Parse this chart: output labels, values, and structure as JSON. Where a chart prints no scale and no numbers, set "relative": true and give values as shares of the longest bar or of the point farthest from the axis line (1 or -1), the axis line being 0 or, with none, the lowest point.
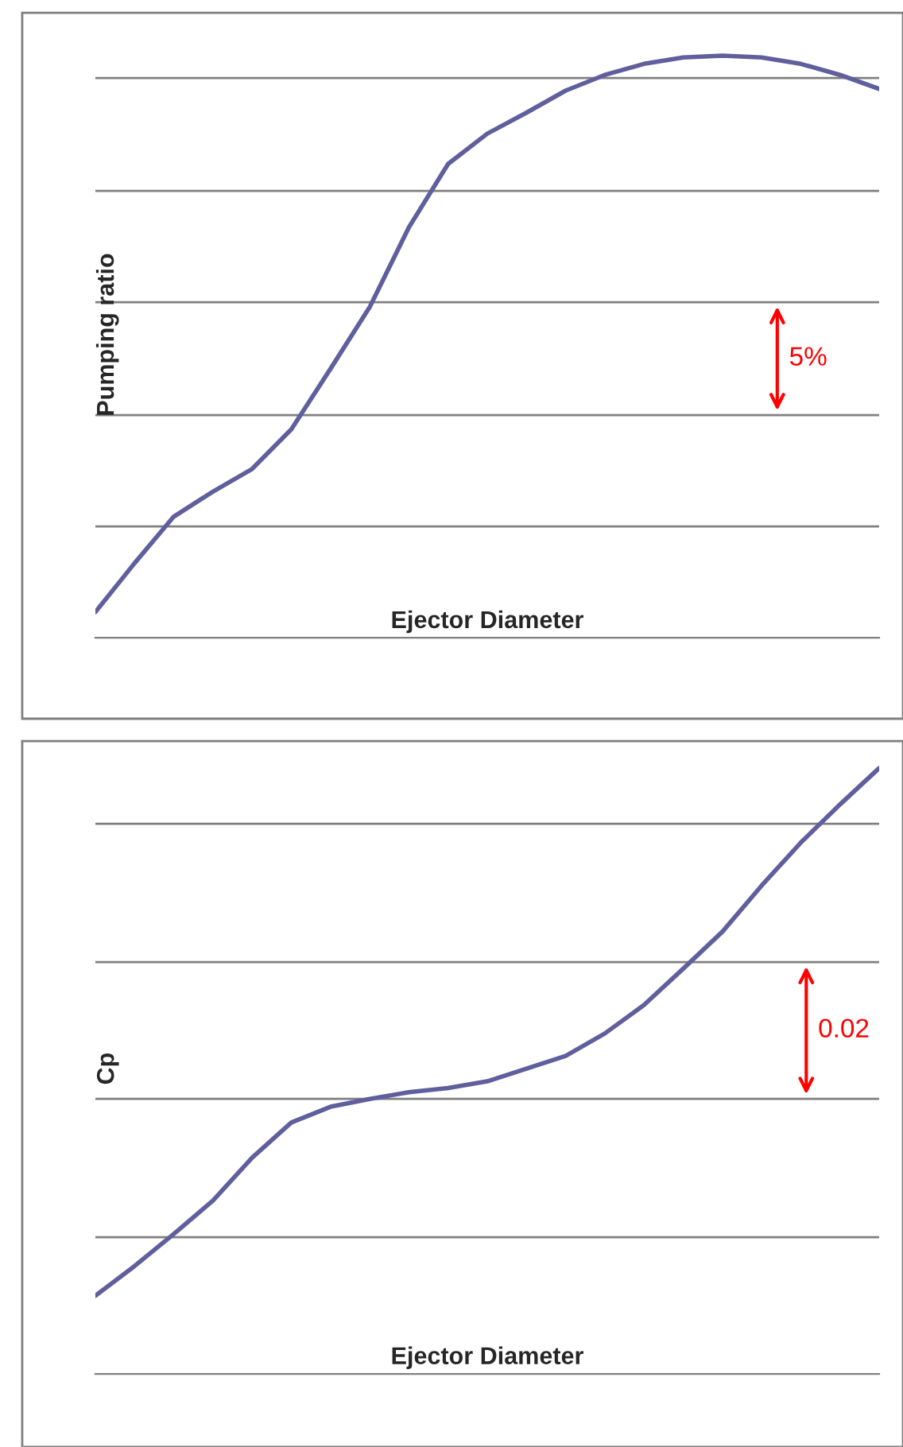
{
  "chart_data": [
    {
      "type": "line",
      "relative": true,
      "ylabel": "Pumping ratio",
      "xlabel": "Ejector Diameter",
      "grid": "y",
      "marker": "none",
      "line_style": "solid",
      "categories": [
        null,
        null,
        null,
        null,
        null,
        null,
        null,
        null,
        null,
        null,
        null,
        null,
        null,
        null,
        null,
        null,
        null,
        null,
        null,
        null,
        null
      ],
      "series": [
        {
          "color": "#5f5f9e",
          "values": [
            0.044,
            0.128,
            0.208,
            0.251,
            0.29,
            0.358,
            0.462,
            0.568,
            0.705,
            0.814,
            0.866,
            0.902,
            0.94,
            0.967,
            0.986,
            0.997,
            1,
            0.997,
            0.986,
            0.967,
            0.943
          ]
        }
      ],
      "annotations": [
        "5%"
      ]
    },
    {
      "type": "line",
      "relative": true,
      "ylabel": "Cp",
      "xlabel": "Ejector Diameter",
      "grid": "y",
      "marker": "none",
      "line_style": "solid",
      "categories": [
        null,
        null,
        null,
        null,
        null,
        null,
        null,
        null,
        null,
        null,
        null,
        null,
        null,
        null,
        null,
        null,
        null,
        null,
        null,
        null,
        null
      ],
      "series": [
        {
          "color": "#5f5f9e",
          "values": [
            0.129,
            0.178,
            0.231,
            0.286,
            0.357,
            0.415,
            0.441,
            0.454,
            0.465,
            0.472,
            0.483,
            0.504,
            0.525,
            0.562,
            0.609,
            0.669,
            0.73,
            0.806,
            0.877,
            0.94,
            1
          ]
        }
      ],
      "annotations": [
        "0.02"
      ]
    }
  ]
}
